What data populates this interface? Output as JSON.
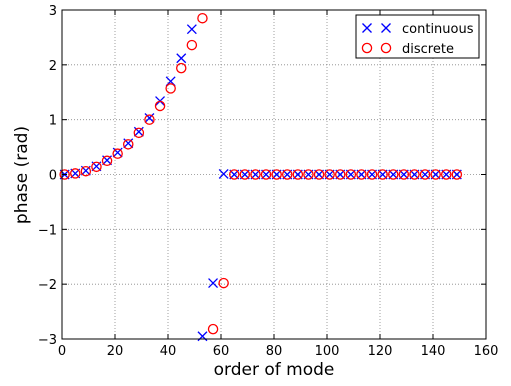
{
  "chart_data": {
    "type": "scatter",
    "xlabel": "order of mode",
    "ylabel": "phase (rad)",
    "xlim": [
      0,
      160
    ],
    "ylim": [
      -3,
      3
    ],
    "xticks": [
      0,
      20,
      40,
      60,
      80,
      100,
      120,
      140,
      160
    ],
    "yticks": [
      -3,
      -2,
      -1,
      0,
      1,
      2,
      3
    ],
    "xtick_labels": [
      "0",
      "20",
      "40",
      "60",
      "80",
      "100",
      "120",
      "140",
      "160"
    ],
    "ytick_labels": [
      "−3",
      "−2",
      "−1",
      "0",
      "1",
      "2",
      "3"
    ],
    "grid": true,
    "legend_position": "top-right",
    "series": [
      {
        "name": "continuous",
        "marker": "x",
        "color": "#0000ff",
        "points": [
          [
            1,
            0.0
          ],
          [
            5,
            0.02
          ],
          [
            9,
            0.07
          ],
          [
            13,
            0.15
          ],
          [
            17,
            0.26
          ],
          [
            21,
            0.4
          ],
          [
            25,
            0.57
          ],
          [
            29,
            0.78
          ],
          [
            33,
            1.03
          ],
          [
            37,
            1.34
          ],
          [
            41,
            1.7
          ],
          [
            45,
            2.12
          ],
          [
            49,
            2.65
          ],
          [
            53,
            -2.95
          ],
          [
            57,
            -1.98
          ],
          [
            61,
            0.01
          ],
          [
            65,
            0.0
          ],
          [
            69,
            0.0
          ],
          [
            73,
            0.0
          ],
          [
            77,
            0.0
          ],
          [
            81,
            0.0
          ],
          [
            85,
            0.0
          ],
          [
            89,
            0.0
          ],
          [
            93,
            0.0
          ],
          [
            97,
            0.0
          ],
          [
            101,
            0.0
          ],
          [
            105,
            0.0
          ],
          [
            109,
            0.0
          ],
          [
            113,
            0.0
          ],
          [
            117,
            0.0
          ],
          [
            121,
            0.0
          ],
          [
            125,
            0.0
          ],
          [
            129,
            0.0
          ],
          [
            133,
            0.0
          ],
          [
            137,
            0.0
          ],
          [
            141,
            0.0
          ],
          [
            145,
            0.0
          ],
          [
            149,
            0.0
          ]
        ]
      },
      {
        "name": "discrete",
        "marker": "o",
        "color": "#ff0000",
        "points": [
          [
            1,
            0.0
          ],
          [
            5,
            0.02
          ],
          [
            9,
            0.06
          ],
          [
            13,
            0.14
          ],
          [
            17,
            0.25
          ],
          [
            21,
            0.38
          ],
          [
            25,
            0.55
          ],
          [
            29,
            0.76
          ],
          [
            33,
            1.0
          ],
          [
            37,
            1.25
          ],
          [
            41,
            1.57
          ],
          [
            45,
            1.94
          ],
          [
            49,
            2.36
          ],
          [
            53,
            2.85
          ],
          [
            57,
            -2.82
          ],
          [
            61,
            -1.98
          ],
          [
            65,
            0.0
          ],
          [
            69,
            0.0
          ],
          [
            73,
            0.0
          ],
          [
            77,
            0.0
          ],
          [
            81,
            0.0
          ],
          [
            85,
            0.0
          ],
          [
            89,
            0.0
          ],
          [
            93,
            0.0
          ],
          [
            97,
            0.0
          ],
          [
            101,
            0.0
          ],
          [
            105,
            0.0
          ],
          [
            109,
            0.0
          ],
          [
            113,
            0.0
          ],
          [
            117,
            0.0
          ],
          [
            121,
            0.0
          ],
          [
            125,
            0.0
          ],
          [
            129,
            0.0
          ],
          [
            133,
            0.0
          ],
          [
            137,
            0.0
          ],
          [
            141,
            0.0
          ],
          [
            145,
            0.0
          ],
          [
            149,
            0.0
          ]
        ]
      }
    ]
  }
}
